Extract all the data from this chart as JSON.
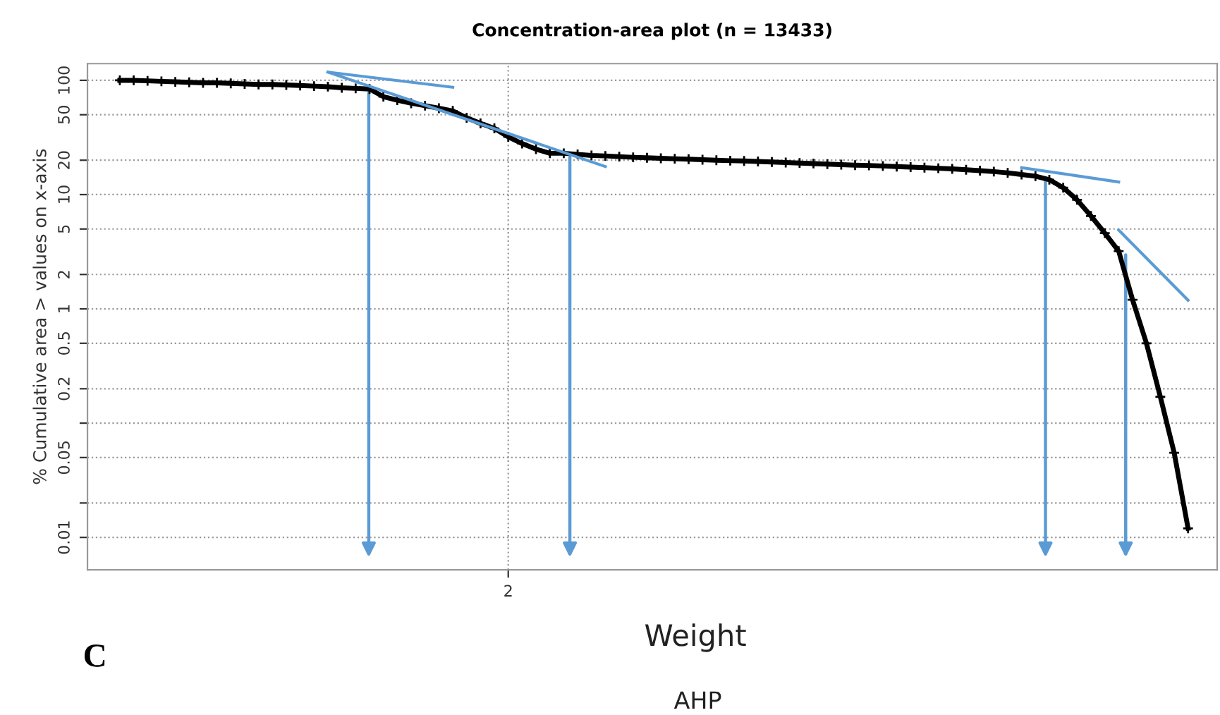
{
  "chart_data": {
    "type": "line",
    "title": "Concentration-area plot (n = 13433)",
    "xlabel": "Weight",
    "ylabel": "% Cumulative area > values on x-axis",
    "annotations": [
      "C",
      "AHP"
    ],
    "categories": [
      null,
      null,
      null,
      null,
      null,
      null,
      null,
      null,
      null,
      null,
      null,
      null,
      null,
      null,
      null,
      null,
      null,
      null,
      null,
      null,
      null,
      null,
      null,
      null,
      null,
      null,
      null,
      null,
      "2",
      null,
      null,
      null,
      null,
      null,
      null,
      null,
      null,
      null,
      null,
      null,
      null,
      null,
      null,
      null,
      null,
      null,
      null,
      null,
      null,
      null,
      null,
      null,
      null,
      null,
      null,
      null,
      null,
      null,
      null,
      null,
      null,
      null,
      null,
      null,
      null,
      null,
      null,
      null,
      null,
      null,
      null,
      null,
      null,
      null,
      null,
      null,
      null,
      null
    ],
    "log": "y",
    "ylim": [
      0.0052,
      140
    ],
    "yticks": [
      0.01,
      {
        "value": 0.02,
        "label": null
      },
      0.05,
      {
        "value": 0.1,
        "label": null
      },
      0.2,
      0.5,
      1,
      2,
      5,
      10,
      20,
      50,
      100
    ],
    "grid": true,
    "marker": "cross",
    "line_style": "solid",
    "series": [
      {
        "color": "#000000",
        "values": [
          100,
          100,
          99,
          98,
          97,
          96,
          95,
          95,
          94,
          93,
          92,
          92,
          91,
          90,
          89,
          88,
          86,
          85,
          84,
          72,
          67,
          63,
          60,
          57,
          54,
          47,
          42,
          38,
          32,
          28,
          25,
          23,
          23,
          22.5,
          22,
          21.8,
          21.5,
          21.2,
          21,
          20.8,
          20.6,
          20.4,
          20.2,
          20,
          19.8,
          19.7,
          19.5,
          19.3,
          19.1,
          18.9,
          18.7,
          18.5,
          18.3,
          18.1,
          18,
          17.8,
          17.6,
          17.4,
          17.2,
          17,
          16.8,
          16.5,
          16.2,
          15.9,
          15.5,
          15,
          14.5,
          13.5,
          11.5,
          9,
          6.5,
          4.6,
          3.2,
          1.2,
          0.5,
          0.17,
          0.055,
          0.012
        ]
      },
      {
        "color": "#5b9bd5",
        "marker": "none",
        "values": [
          null,
          null,
          null,
          null,
          null,
          null,
          null,
          null,
          null,
          null,
          null,
          null,
          null,
          null,
          null,
          118,
          null,
          null,
          null,
          null,
          null,
          null,
          null,
          null,
          87,
          null,
          null,
          null,
          null,
          null,
          null,
          null,
          null,
          null,
          null,
          null,
          null,
          null,
          null,
          null,
          null,
          null,
          null,
          null,
          null,
          null,
          null,
          null,
          null,
          null,
          null,
          null,
          null,
          null,
          null,
          null,
          null,
          null,
          null,
          null,
          null,
          null,
          null,
          null,
          null,
          null,
          null,
          null,
          null,
          null,
          null,
          null,
          null,
          null,
          null,
          null,
          null,
          null
        ]
      },
      {
        "color": "#5b9bd5",
        "marker": "none",
        "values": [
          null,
          null,
          null,
          null,
          null,
          null,
          null,
          null,
          null,
          null,
          null,
          null,
          null,
          null,
          null,
          118,
          null,
          null,
          null,
          null,
          null,
          null,
          null,
          null,
          null,
          null,
          null,
          null,
          null,
          null,
          null,
          null,
          null,
          null,
          null,
          17.6,
          null,
          null,
          null,
          null,
          null,
          null,
          null,
          null,
          null,
          null,
          null,
          null,
          null,
          null,
          null,
          null,
          null,
          null,
          null,
          null,
          null,
          null,
          null,
          null,
          null,
          null,
          null,
          null,
          null,
          null,
          null,
          null,
          null,
          null,
          null,
          null,
          null,
          null,
          null,
          null,
          null,
          null
        ]
      },
      {
        "color": "#5b9bd5",
        "marker": "none",
        "values": [
          null,
          null,
          null,
          null,
          null,
          null,
          null,
          null,
          null,
          null,
          null,
          null,
          null,
          null,
          null,
          null,
          null,
          null,
          null,
          null,
          null,
          null,
          null,
          null,
          null,
          null,
          null,
          null,
          null,
          null,
          null,
          null,
          null,
          null,
          null,
          null,
          null,
          null,
          null,
          null,
          null,
          null,
          null,
          null,
          null,
          null,
          null,
          null,
          null,
          null,
          null,
          null,
          null,
          null,
          null,
          null,
          null,
          null,
          null,
          null,
          null,
          null,
          null,
          null,
          null,
          17.2,
          null,
          null,
          null,
          null,
          null,
          null,
          12.9,
          null,
          null,
          null,
          null,
          null
        ]
      },
      {
        "color": "#5b9bd5",
        "marker": "none",
        "values": [
          null,
          null,
          null,
          null,
          null,
          null,
          null,
          null,
          null,
          null,
          null,
          null,
          null,
          null,
          null,
          null,
          null,
          null,
          null,
          null,
          null,
          null,
          null,
          null,
          null,
          null,
          null,
          null,
          null,
          null,
          null,
          null,
          null,
          null,
          null,
          null,
          null,
          null,
          null,
          null,
          null,
          null,
          null,
          null,
          null,
          null,
          null,
          null,
          null,
          null,
          null,
          null,
          null,
          null,
          null,
          null,
          null,
          null,
          null,
          null,
          null,
          null,
          null,
          null,
          null,
          null,
          null,
          null,
          null,
          null,
          null,
          null,
          4.9,
          null,
          null,
          null,
          null,
          1.19
        ]
      }
    ]
  }
}
